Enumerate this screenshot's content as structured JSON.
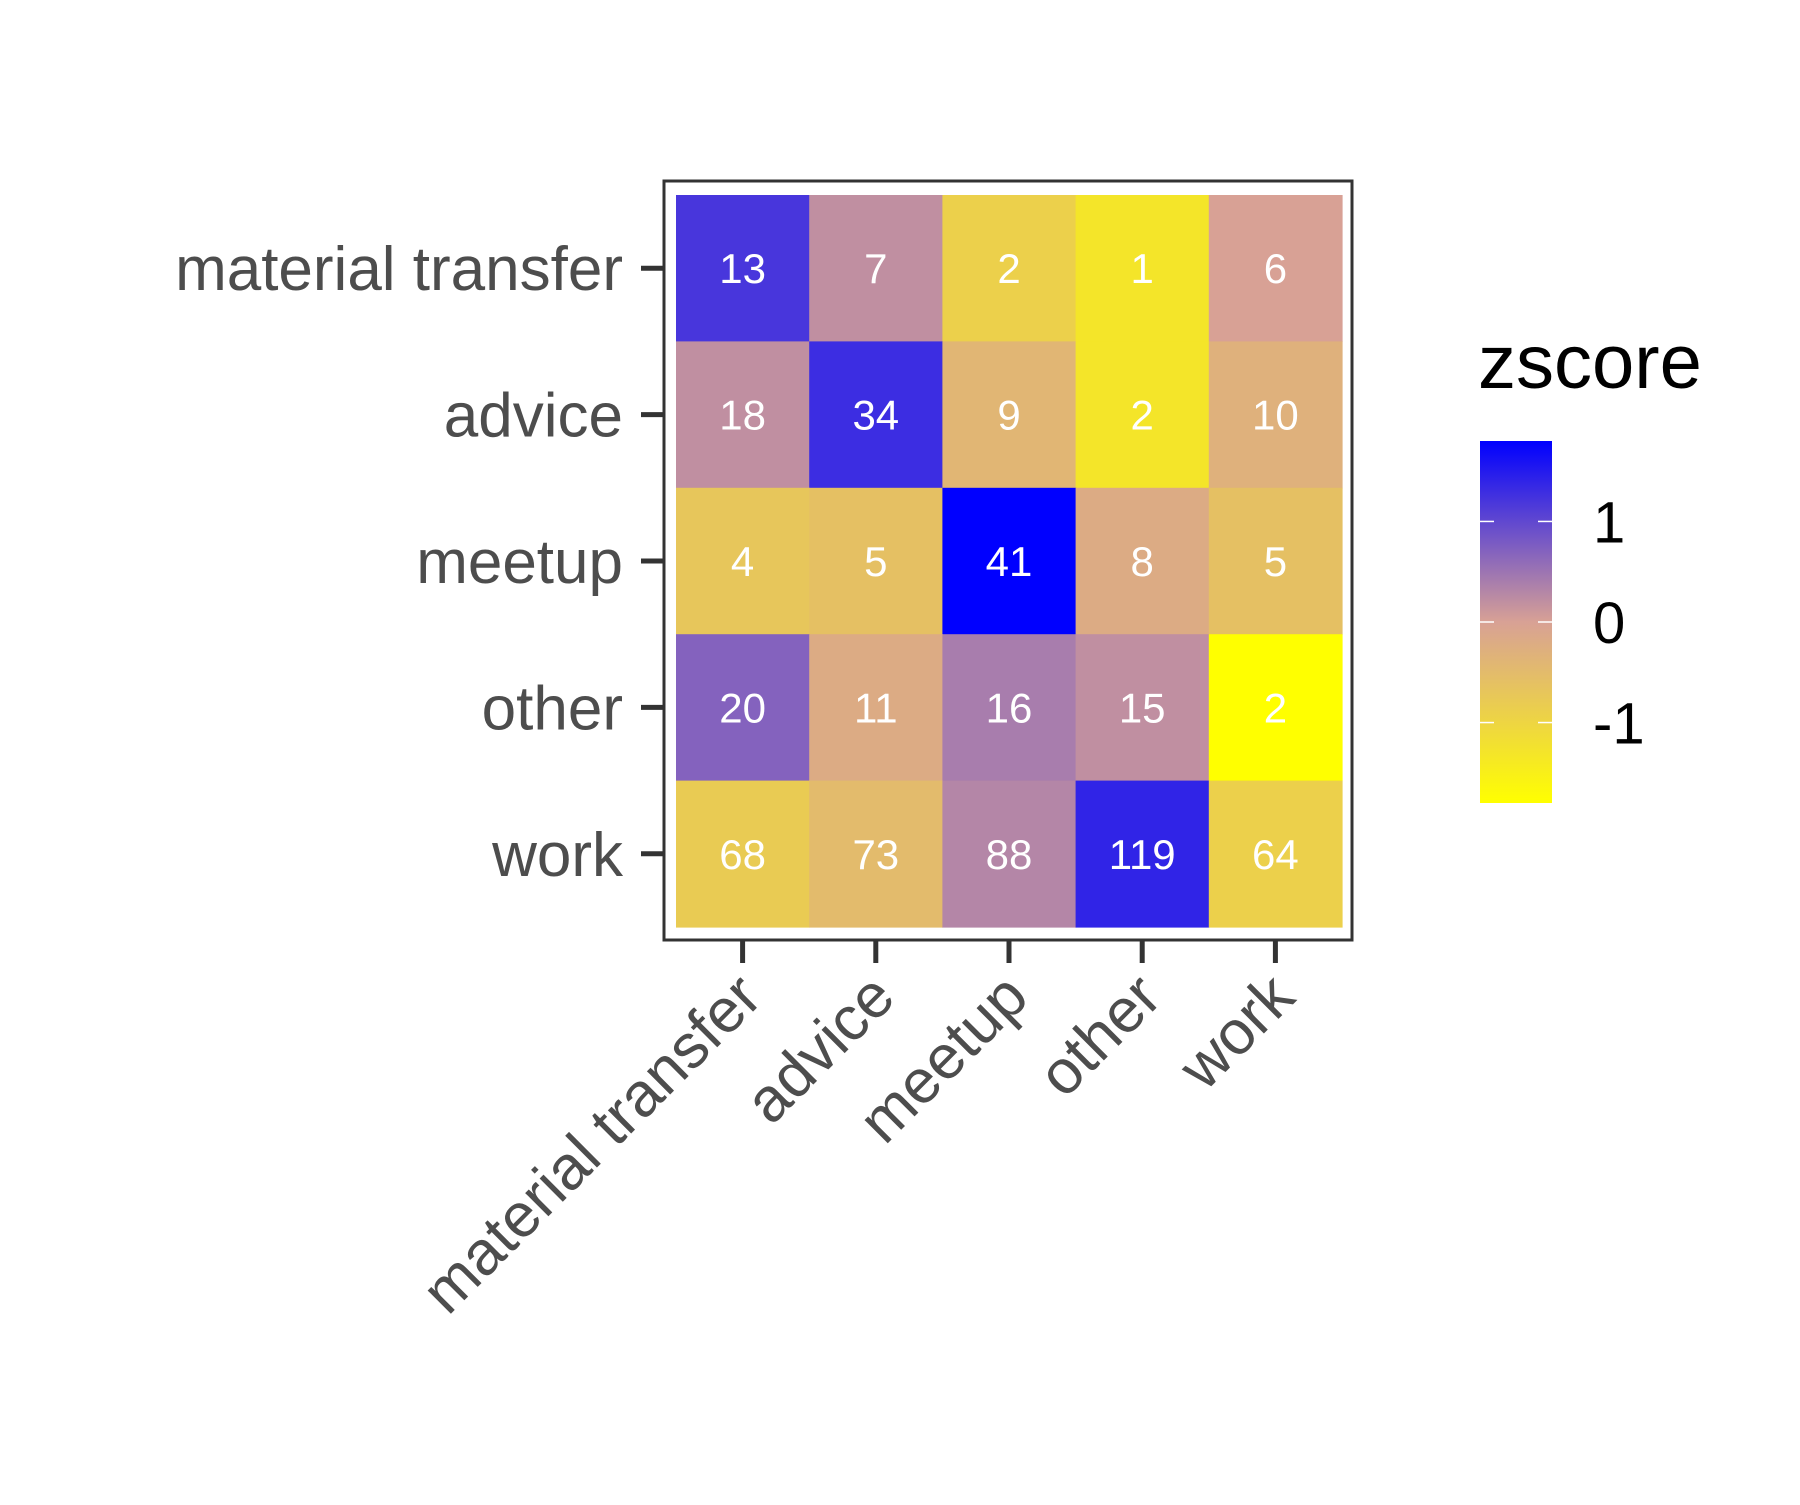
{
  "chart_data": {
    "type": "heatmap",
    "rows": [
      "material transfer",
      "advice",
      "meetup",
      "other",
      "work"
    ],
    "columns": [
      "material transfer",
      "advice",
      "meetup",
      "other",
      "work"
    ],
    "counts": [
      [
        13,
        7,
        2,
        1,
        6
      ],
      [
        18,
        34,
        9,
        2,
        10
      ],
      [
        4,
        5,
        41,
        8,
        5
      ],
      [
        20,
        11,
        16,
        15,
        2
      ],
      [
        68,
        73,
        88,
        119,
        64
      ]
    ],
    "zscore": [
      [
        1.2,
        0.2,
        -0.9,
        -1.3,
        0.0
      ],
      [
        0.2,
        1.3,
        -0.4,
        -1.3,
        -0.3
      ],
      [
        -0.7,
        -0.6,
        1.8,
        -0.2,
        -0.6
      ],
      [
        0.7,
        -0.2,
        0.4,
        0.2,
        -1.8
      ],
      [
        -0.8,
        -0.5,
        0.3,
        1.4,
        -0.9
      ]
    ],
    "xlabel": "",
    "ylabel": "",
    "legend": {
      "title": "zscore",
      "ticks": [
        1,
        0,
        -1
      ],
      "tick_labels": [
        "1",
        "0",
        "-1"
      ],
      "range": [
        -1.8,
        1.8
      ],
      "placement": "right"
    },
    "colors": {
      "low": "#ffff00",
      "mid": "#d8a195",
      "high": "#0000ff",
      "cell_text": "#ffffff",
      "axis_text": "#4d4d4d",
      "panel_border": "#333333"
    },
    "grid": false
  }
}
